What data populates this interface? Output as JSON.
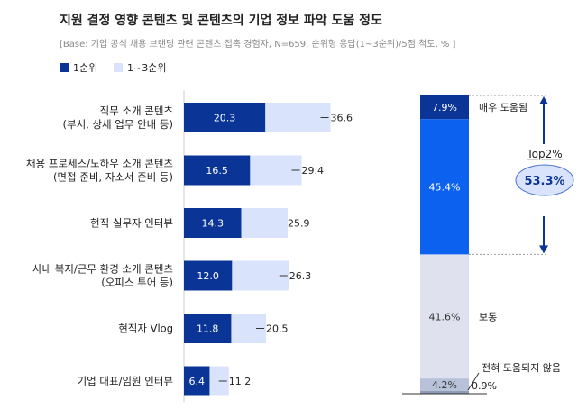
{
  "title": "지원 결정 영향 콘텐츠 및 콘텐츠의 기업 정보 파악 도움 정도",
  "subtitle": "[Base: 기업 공식 채용 브랜딩 관련 콘텐츠 접촉 경험자, N=659, 순위형 응답(1~3순위)/5점 척도, % ]",
  "legend": [
    {
      "label": "1순위",
      "color": "#0a3597"
    },
    {
      "label": "1~3순위",
      "color": "#d9e3fb"
    }
  ],
  "chart_data": [
    {
      "type": "bar",
      "orientation": "horizontal",
      "categories": [
        [
          "직무 소개 콘텐츠",
          "(부서, 상세 업무 안내 등)"
        ],
        [
          "채용 프로세스/노하우 소개 콘텐츠",
          "(면접 준비, 자소서 준비 등)"
        ],
        [
          "현직 실무자 인터뷰"
        ],
        [
          "사내 복지/근무 환경 소개 콘텐츠",
          "(오피스 투어 등)"
        ],
        [
          "현직자 Vlog"
        ],
        [
          "기업 대표/임원 인터뷰"
        ]
      ],
      "series": [
        {
          "name": "1순위",
          "color": "#0a3597",
          "values": [
            20.3,
            16.5,
            14.3,
            12.0,
            11.8,
            6.4
          ]
        },
        {
          "name": "1~3순위",
          "color": "#d9e3fb",
          "values": [
            36.6,
            29.4,
            25.9,
            26.3,
            20.5,
            11.2
          ]
        }
      ],
      "value_labels": {
        "1순위": [
          "20.3",
          "16.5",
          "14.3",
          "12.0",
          "11.8",
          "6.4"
        ],
        "1~3순위": [
          "36.6",
          "29.4",
          "25.9",
          "26.3",
          "20.5",
          "11.2"
        ]
      }
    },
    {
      "type": "bar",
      "orientation": "stacked-vertical",
      "total": 100,
      "segments": [
        {
          "label": "매우 도움됨",
          "value": 7.9,
          "value_label": "7.9%",
          "color": "#0a3597"
        },
        {
          "label": "",
          "value": 45.4,
          "value_label": "45.4%",
          "color": "#0c62ef"
        },
        {
          "label": "보통",
          "value": 41.6,
          "value_label": "41.6%",
          "color": "#dfe2ee"
        },
        {
          "label": "",
          "value": 4.2,
          "value_label": "4.2%",
          "color": "#b7c2d8"
        },
        {
          "label": "전혀 도움되지 않음",
          "value": 0.9,
          "value_label": "0.9%",
          "color": "#8e9ab6"
        }
      ],
      "top2": {
        "label": "Top2%",
        "value": 53.3,
        "value_label": "53.3%"
      }
    }
  ]
}
